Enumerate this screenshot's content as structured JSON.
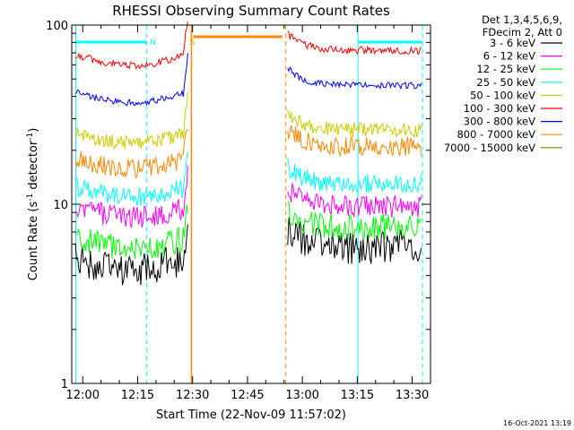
{
  "chart_data": {
    "type": "line",
    "title": "RHESSI Observing Summary Count Rates",
    "xlabel": "Start Time (22-Nov-09 11:57:02)",
    "ylabel_main": "Count Rate (s",
    "ylabel_sup1": "-1",
    "ylabel_mid": " detector",
    "ylabel_sup2": "-1",
    "ylabel_end": ")",
    "ylabel": "Count Rate (s^-1 detector^-1)",
    "yscale": "log",
    "ylim": [
      1,
      100
    ],
    "xlim_min": [
      -3,
      95
    ],
    "x_tick_labels": [
      "12:00",
      "12:15",
      "12:30",
      "12:45",
      "13:00",
      "13:15",
      "13:30"
    ],
    "x_tick_min": [
      0,
      15,
      30,
      45,
      60,
      75,
      90
    ],
    "y_tick_labels": [
      "1",
      "10",
      "100"
    ],
    "y_tick_values": [
      1,
      10,
      100
    ],
    "info": [
      "Det 1,3,4,5,6,9,",
      "FDecim 2, Att 0"
    ],
    "timestamp": "16-Oct-2021 13:19",
    "flags": [
      {
        "label": "N",
        "x_min": 17.5
      },
      {
        "label": "S",
        "x_min": 28.2
      }
    ],
    "gap_min": [
      29.7,
      55.5
    ],
    "series": [
      {
        "name": "3 - 6 keV",
        "color": "#000000",
        "segments": [
          {
            "x": [
              -2,
              28.7
            ],
            "y": 5.0
          },
          {
            "x": [
              56,
              92.5
            ],
            "y": 5.8
          }
        ]
      },
      {
        "name": "6 - 12 keV",
        "color": "#ff00ff",
        "segments": [
          {
            "x": [
              -2,
              28.7
            ],
            "y": 9.6
          },
          {
            "x": [
              56,
              92.5
            ],
            "y": 9.7
          }
        ]
      },
      {
        "name": "12 - 25 keV",
        "color": "#00ff00",
        "segments": [
          {
            "x": [
              -2,
              28.7
            ],
            "y": 6.5
          },
          {
            "x": [
              56,
              92.5
            ],
            "y": 7.5
          }
        ]
      },
      {
        "name": "25 - 50 keV",
        "color": "#00ffff",
        "segments": [
          {
            "x": [
              -2,
              28.7
            ],
            "y": 12.5
          },
          {
            "x": [
              56,
              92.5
            ],
            "y": 13.0
          }
        ]
      },
      {
        "name": "50 - 100 keV",
        "color": "#cccc00",
        "segments": [
          {
            "x": [
              -2,
              28.7
            ],
            "y": 25.0
          },
          {
            "x": [
              56,
              92.5
            ],
            "y": 26.0
          }
        ]
      },
      {
        "name": "100 - 300 keV",
        "color": "#ff0000",
        "segments": [
          {
            "x": [
              -2,
              28.7
            ],
            "y": 68.0
          },
          {
            "x": [
              56,
              92.5
            ],
            "y": 72.0
          }
        ]
      },
      {
        "name": "300 - 800 keV",
        "color": "#0000ff",
        "segments": [
          {
            "x": [
              -2,
              28.7
            ],
            "y": 42.0
          },
          {
            "x": [
              56,
              92.5
            ],
            "y": 46.0
          }
        ]
      },
      {
        "name": "800 - 7000 keV",
        "color": "#ff8800",
        "segments": [
          {
            "x": [
              -2,
              28.7
            ],
            "y": 18.0
          },
          {
            "x": [
              56,
              92.5
            ],
            "y": 21.0
          }
        ]
      },
      {
        "name": "7000 - 15000 keV",
        "color": "#7f7f00",
        "segments": []
      }
    ],
    "saturated_bar_color": "#ff8800",
    "saa_color": "#00ffff"
  }
}
